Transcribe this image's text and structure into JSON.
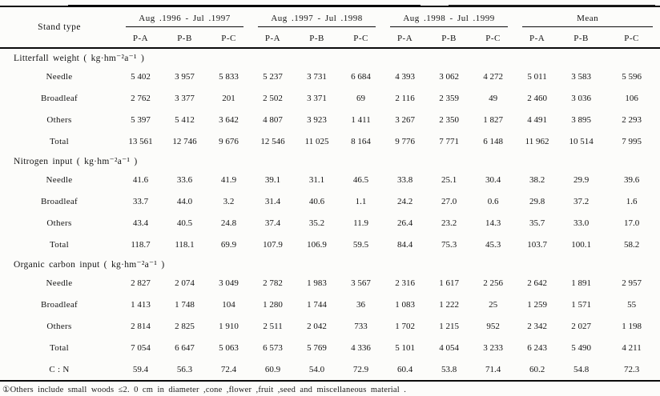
{
  "table": {
    "stand_type_header": "Stand type",
    "groups": [
      {
        "label": "Aug .1996 - Jul .1997"
      },
      {
        "label": "Aug .1997 - Jul .1998"
      },
      {
        "label": "Aug .1998 - Jul .1999"
      },
      {
        "label": "Mean"
      }
    ],
    "subcolumns": [
      "P-A",
      "P-B",
      "P-C"
    ],
    "sections": [
      {
        "title": "Litterfall weight ( kg·hm⁻²a⁻¹ )",
        "rows": [
          {
            "label": "Needle",
            "values": [
              "5 402",
              "3 957",
              "5 833",
              "5 237",
              "3 731",
              "6 684",
              "4 393",
              "3 062",
              "4 272",
              "5 011",
              "3 583",
              "5 596"
            ]
          },
          {
            "label": "Broadleaf",
            "values": [
              "2 762",
              "3 377",
              "201",
              "2 502",
              "3 371",
              "69",
              "2 116",
              "2 359",
              "49",
              "2 460",
              "3 036",
              "106"
            ]
          },
          {
            "label": "Others",
            "values": [
              "5 397",
              "5 412",
              "3 642",
              "4 807",
              "3 923",
              "1 411",
              "3 267",
              "2 350",
              "1 827",
              "4 491",
              "3 895",
              "2 293"
            ]
          },
          {
            "label": "Total",
            "values": [
              "13 561",
              "12 746",
              "9 676",
              "12 546",
              "11 025",
              "8 164",
              "9 776",
              "7 771",
              "6 148",
              "11 962",
              "10 514",
              "7 995"
            ]
          }
        ]
      },
      {
        "title": "Nitrogen input ( kg·hm⁻²a⁻¹ )",
        "rows": [
          {
            "label": "Needle",
            "values": [
              "41.6",
              "33.6",
              "41.9",
              "39.1",
              "31.1",
              "46.5",
              "33.8",
              "25.1",
              "30.4",
              "38.2",
              "29.9",
              "39.6"
            ]
          },
          {
            "label": "Broadleaf",
            "values": [
              "33.7",
              "44.0",
              "3.2",
              "31.4",
              "40.6",
              "1.1",
              "24.2",
              "27.0",
              "0.6",
              "29.8",
              "37.2",
              "1.6"
            ]
          },
          {
            "label": "Others",
            "values": [
              "43.4",
              "40.5",
              "24.8",
              "37.4",
              "35.2",
              "11.9",
              "26.4",
              "23.2",
              "14.3",
              "35.7",
              "33.0",
              "17.0"
            ]
          },
          {
            "label": "Total",
            "values": [
              "118.7",
              "118.1",
              "69.9",
              "107.9",
              "106.9",
              "59.5",
              "84.4",
              "75.3",
              "45.3",
              "103.7",
              "100.1",
              "58.2"
            ]
          }
        ]
      },
      {
        "title": "Organic carbon input ( kg·hm⁻²a⁻¹ )",
        "rows": [
          {
            "label": "Needle",
            "values": [
              "2 827",
              "2 074",
              "3 049",
              "2 782",
              "1 983",
              "3 567",
              "2 316",
              "1 617",
              "2 256",
              "2 642",
              "1 891",
              "2 957"
            ]
          },
          {
            "label": "Broadleaf",
            "values": [
              "1 413",
              "1 748",
              "104",
              "1 280",
              "1 744",
              "36",
              "1 083",
              "1 222",
              "25",
              "1 259",
              "1 571",
              "55"
            ]
          },
          {
            "label": "Others",
            "values": [
              "2 814",
              "2 825",
              "1 910",
              "2 511",
              "2 042",
              "733",
              "1 702",
              "1 215",
              "952",
              "2 342",
              "2 027",
              "1 198"
            ]
          },
          {
            "label": "Total",
            "values": [
              "7 054",
              "6 647",
              "5 063",
              "6 573",
              "5 769",
              "4 336",
              "5 101",
              "4 054",
              "3 233",
              "6 243",
              "5 490",
              "4 211"
            ]
          },
          {
            "label": "C : N",
            "values": [
              "59.4",
              "56.3",
              "72.4",
              "60.9",
              "54.0",
              "72.9",
              "60.4",
              "53.8",
              "71.4",
              "60.2",
              "54.8",
              "72.3"
            ]
          }
        ]
      }
    ],
    "footnote": "①Others include small woods ≤2. 0 cm in diameter ,cone ,flower ,fruit ,seed and miscellaneous material ."
  }
}
